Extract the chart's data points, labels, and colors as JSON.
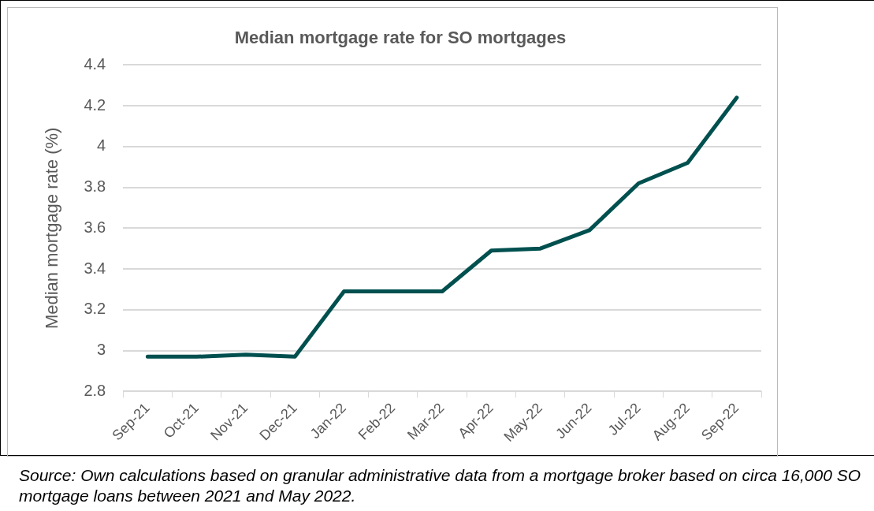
{
  "chart_data": {
    "type": "line",
    "title": "Median mortgage rate for SO mortgages",
    "ylabel": "Median mortgage rate (%)",
    "categories": [
      "Sep-21",
      "Oct-21",
      "Nov-21",
      "Dec-21",
      "Jan-22",
      "Feb-22",
      "Mar-22",
      "Apr-22",
      "May-22",
      "Jun-22",
      "Jul-22",
      "Aug-22",
      "Sep-22"
    ],
    "series": [
      {
        "color": "#00504f",
        "values": [
          2.97,
          2.97,
          2.98,
          2.97,
          3.29,
          3.29,
          3.29,
          3.49,
          3.5,
          3.59,
          3.82,
          3.92,
          4.24
        ]
      }
    ],
    "ylim": [
      2.8,
      4.4
    ],
    "yticks": [
      2.8,
      3,
      3.2,
      3.4,
      3.6,
      3.8,
      4,
      4.2,
      4.4
    ],
    "grid": "y",
    "marker": "none",
    "line_style": "solid",
    "annotations": [
      "Source: Own calculations based on granular administrative data from a mortgage broker based on circa 16,000 SO mortgage loans between 2021 and May 2022."
    ]
  }
}
